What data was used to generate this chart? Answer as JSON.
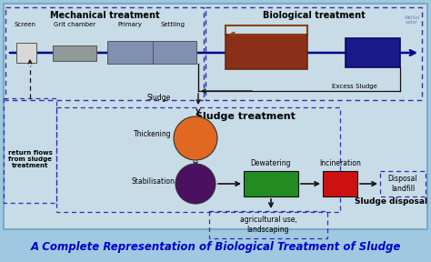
{
  "bg_color": "#c8dce8",
  "fig_bg": "#a0c8e0",
  "title": "A Complete Representation of Biological Treatment of Sludge",
  "title_color": "#0000cc",
  "title_fontsize": 8.5,
  "mech_label": "Mechanical treatment",
  "bio_label": "Biological treatment",
  "sludge_treat_label": "Sludge treatment",
  "sludge_disposal_label": "Sludge disposal",
  "agri_label": "agricultural use,\nlandscaping",
  "incineration_label": "Incineration",
  "disposal_box_label": "Disposal\nlandfill",
  "screen_label": "Screen",
  "grit_label": "Grit chamber",
  "primary_label": "Primary",
  "settling_label": "Settling",
  "sludge_flow_label": "Sludge",
  "excess_sludge_label": "Excess Sludge",
  "return_flows_label": "return flows\nfrom sludge\ntreatment",
  "thickening_label": "Thickening",
  "stabilisation_label": "Stabilisation",
  "dewatering_label": "Dewatering",
  "screen_color": "#d0d0d0",
  "grit_color": "#909898",
  "primary_color": "#8090b0",
  "bio1_color": "#8b3018",
  "bio2_color": "#1a1a8c",
  "green_color": "#228b22",
  "red_color": "#cc1111",
  "orange_color": "#e06820",
  "purple_color": "#4b1060",
  "arrow_dark": "#00008b",
  "arrow_black": "#111111",
  "loop_color": "#8b4010"
}
